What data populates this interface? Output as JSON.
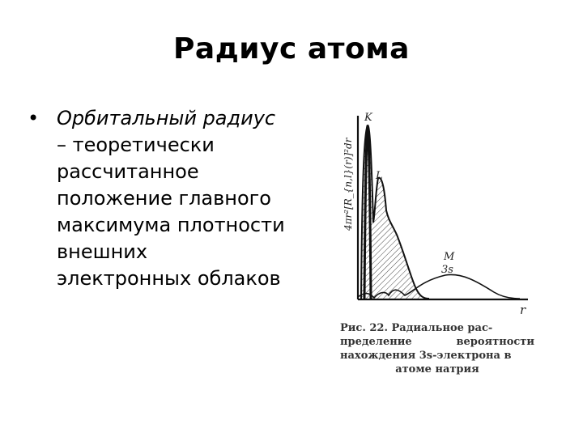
{
  "slide": {
    "title": "Радиус атома",
    "bullet": {
      "marker": "•",
      "term": "Орбитальный радиус",
      "rest": "– теоретически рассчитанное положение главного максимума плотности внешних электронных облаков"
    }
  },
  "figure": {
    "ylabel": "4πr²[R_{n,l}(r)]²dr",
    "xlabel": "r",
    "peak_labels": {
      "K": "K",
      "L": "L",
      "M": "M",
      "M_sub": "3s"
    },
    "caption": {
      "line1": "Рис. 22. Радиальное рас-",
      "line2": "пределение вероятности",
      "line3": "нахождения 3s-электрона в",
      "line4": "атоме натрия"
    }
  }
}
